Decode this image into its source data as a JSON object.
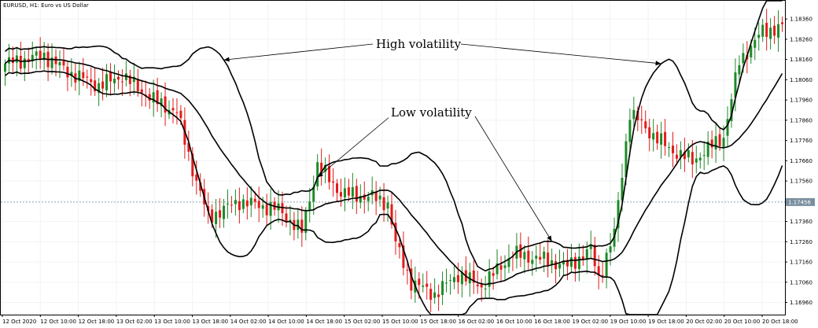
{
  "header": {
    "symbol_title": "EURUSD, H1:  Euro vs US Dollar"
  },
  "colors": {
    "up": "#1e8a28",
    "down": "#e41b1b",
    "band": "#000000",
    "price_line": "#8aa0b4",
    "price_badge": "#7a8ea0"
  },
  "chart_data": {
    "type": "candlestick",
    "title": "",
    "xlabel": "",
    "ylabel": "",
    "ylim": [
      1.169,
      1.1845
    ],
    "yticks": [
      1.1836,
      1.1826,
      1.1816,
      1.1806,
      1.1796,
      1.1786,
      1.1776,
      1.1766,
      1.1756,
      1.1736,
      1.1726,
      1.1716,
      1.1706,
      1.1696
    ],
    "current_price": 1.17456,
    "current_price_label": "1.17456",
    "x_labels": [
      "12 Oct 2020",
      "12 Oct 10:00",
      "12 Oct 18:00",
      "13 Oct 02:00",
      "13 Oct 10:00",
      "13 Oct 18:00",
      "14 Oct 02:00",
      "14 Oct 10:00",
      "14 Oct 18:00",
      "15 Oct 02:00",
      "15 Oct 10:00",
      "15 Oct 18:00",
      "16 Oct 02:00",
      "16 Oct 10:00",
      "16 Oct 18:00",
      "19 Oct 02:00",
      "19 Oct 10:00",
      "19 Oct 18:00",
      "20 Oct 02:00",
      "20 Oct 10:00",
      "20 Oct 18:00"
    ],
    "close_anchors": [
      [
        0,
        1.1814
      ],
      [
        10,
        1.1818
      ],
      [
        16,
        1.181
      ],
      [
        24,
        1.1803
      ],
      [
        30,
        1.1808
      ],
      [
        38,
        1.1796
      ],
      [
        44,
        1.179
      ],
      [
        48,
        1.1762
      ],
      [
        52,
        1.1738
      ],
      [
        60,
        1.1746
      ],
      [
        70,
        1.1742
      ],
      [
        76,
        1.1731
      ],
      [
        80,
        1.1764
      ],
      [
        86,
        1.175
      ],
      [
        94,
        1.1748
      ],
      [
        98,
        1.1745
      ],
      [
        100,
        1.1725
      ],
      [
        104,
        1.1706
      ],
      [
        110,
        1.17
      ],
      [
        116,
        1.171
      ],
      [
        122,
        1.1704
      ],
      [
        130,
        1.172
      ],
      [
        136,
        1.1718
      ],
      [
        144,
        1.1714
      ],
      [
        150,
        1.1722
      ],
      [
        152,
        1.1708
      ],
      [
        156,
        1.173
      ],
      [
        160,
        1.179
      ],
      [
        164,
        1.1782
      ],
      [
        170,
        1.1772
      ],
      [
        176,
        1.1766
      ],
      [
        184,
        1.1778
      ],
      [
        188,
        1.1815
      ],
      [
        194,
        1.183
      ],
      [
        199,
        1.1832
      ]
    ],
    "annotations": [
      {
        "text": "High volatility"
      },
      {
        "text": "Low volatility"
      }
    ],
    "bands": [
      "upper",
      "middle",
      "lower"
    ]
  }
}
